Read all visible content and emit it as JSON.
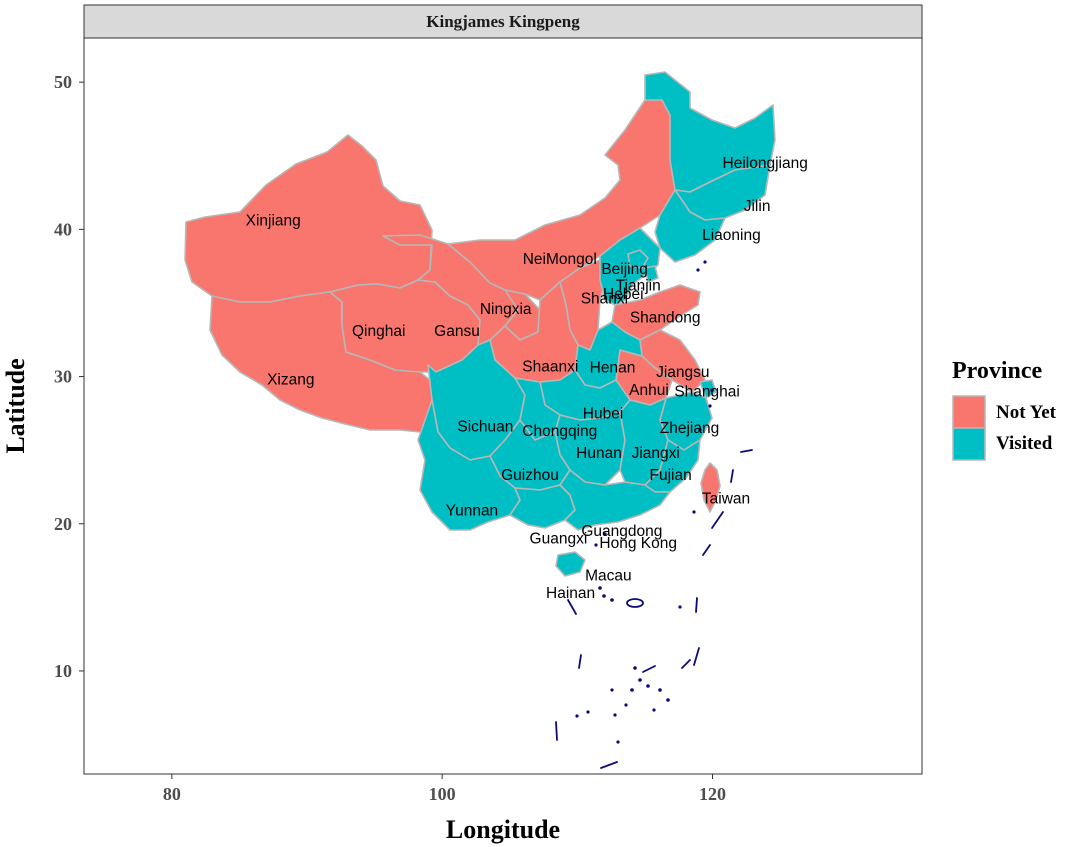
{
  "colors": {
    "not_yet": "#F8766D",
    "visited": "#00BFC4",
    "islands": "#0A0A78",
    "strip": "#D9D9D9"
  },
  "chart_data": {
    "type": "choropleth-map",
    "title": "Kingjames Kingpeng",
    "xlabel": "Longitude",
    "ylabel": "Latitude",
    "xlim": [
      73.5,
      135.5
    ],
    "ylim": [
      3,
      53
    ],
    "xticks": [
      80,
      100,
      120
    ],
    "yticks": [
      10,
      20,
      30,
      40,
      50
    ],
    "legend": {
      "title": "Province",
      "position": "right",
      "entries": [
        {
          "label": "Not Yet",
          "status": "not_yet"
        },
        {
          "label": "Visited",
          "status": "visited"
        }
      ]
    },
    "provinces": [
      {
        "name": "Xinjiang",
        "status": "not_yet",
        "lon": 87.5,
        "lat": 40.6
      },
      {
        "name": "Xizang",
        "status": "not_yet",
        "lon": 88.8,
        "lat": 29.8
      },
      {
        "name": "Qinghai",
        "status": "not_yet",
        "lon": 95.3,
        "lat": 33.1
      },
      {
        "name": "Gansu",
        "status": "not_yet",
        "lon": 101.1,
        "lat": 33.1
      },
      {
        "name": "Ningxia",
        "status": "not_yet",
        "lon": 104.7,
        "lat": 34.6
      },
      {
        "name": "NeiMongol",
        "status": "not_yet",
        "lon": 108.7,
        "lat": 38.0
      },
      {
        "name": "Shanxi",
        "status": "not_yet",
        "lon": 112.0,
        "lat": 35.3
      },
      {
        "name": "Shaanxi",
        "status": "not_yet",
        "lon": 108.0,
        "lat": 30.7
      },
      {
        "name": "Shandong",
        "status": "not_yet",
        "lon": 116.5,
        "lat": 34.0
      },
      {
        "name": "Jiangsu",
        "status": "not_yet",
        "lon": 117.8,
        "lat": 30.3
      },
      {
        "name": "Anhui",
        "status": "not_yet",
        "lon": 115.3,
        "lat": 29.1
      },
      {
        "name": "Taiwan",
        "status": "not_yet",
        "lon": 121.0,
        "lat": 21.7
      },
      {
        "name": "Heilongjiang",
        "status": "visited",
        "lon": 123.9,
        "lat": 44.5
      },
      {
        "name": "Jilin",
        "status": "visited",
        "lon": 123.3,
        "lat": 41.6
      },
      {
        "name": "Liaoning",
        "status": "visited",
        "lon": 121.4,
        "lat": 39.6
      },
      {
        "name": "Beijing",
        "status": "visited",
        "lon": 113.5,
        "lat": 37.3
      },
      {
        "name": "Tianjin",
        "status": "visited",
        "lon": 114.5,
        "lat": 36.2
      },
      {
        "name": "Hebei",
        "status": "visited",
        "lon": 113.4,
        "lat": 35.6
      },
      {
        "name": "Henan",
        "status": "visited",
        "lon": 112.6,
        "lat": 30.6
      },
      {
        "name": "Shanghai",
        "status": "visited",
        "lon": 119.6,
        "lat": 29.0
      },
      {
        "name": "Hubei",
        "status": "visited",
        "lon": 111.9,
        "lat": 27.5
      },
      {
        "name": "Sichuan",
        "status": "visited",
        "lon": 103.2,
        "lat": 26.6
      },
      {
        "name": "Chongqing",
        "status": "visited",
        "lon": 108.7,
        "lat": 26.3
      },
      {
        "name": "Zhejiang",
        "status": "visited",
        "lon": 118.3,
        "lat": 26.5
      },
      {
        "name": "Hunan",
        "status": "visited",
        "lon": 111.6,
        "lat": 24.8
      },
      {
        "name": "Jiangxi",
        "status": "visited",
        "lon": 115.8,
        "lat": 24.8
      },
      {
        "name": "Guizhou",
        "status": "visited",
        "lon": 106.5,
        "lat": 23.3
      },
      {
        "name": "Fujian",
        "status": "visited",
        "lon": 116.9,
        "lat": 23.3
      },
      {
        "name": "Yunnan",
        "status": "visited",
        "lon": 102.2,
        "lat": 20.9
      },
      {
        "name": "Guangdong",
        "status": "visited",
        "lon": 113.3,
        "lat": 19.5
      },
      {
        "name": "Guangxi",
        "status": "visited",
        "lon": 108.6,
        "lat": 19.0
      },
      {
        "name": "Hong Kong",
        "status": "visited",
        "lon": 114.5,
        "lat": 18.7
      },
      {
        "name": "Macau",
        "status": "visited",
        "lon": 112.3,
        "lat": 16.5
      },
      {
        "name": "Hainan",
        "status": "visited",
        "lon": 109.5,
        "lat": 15.3
      }
    ]
  }
}
